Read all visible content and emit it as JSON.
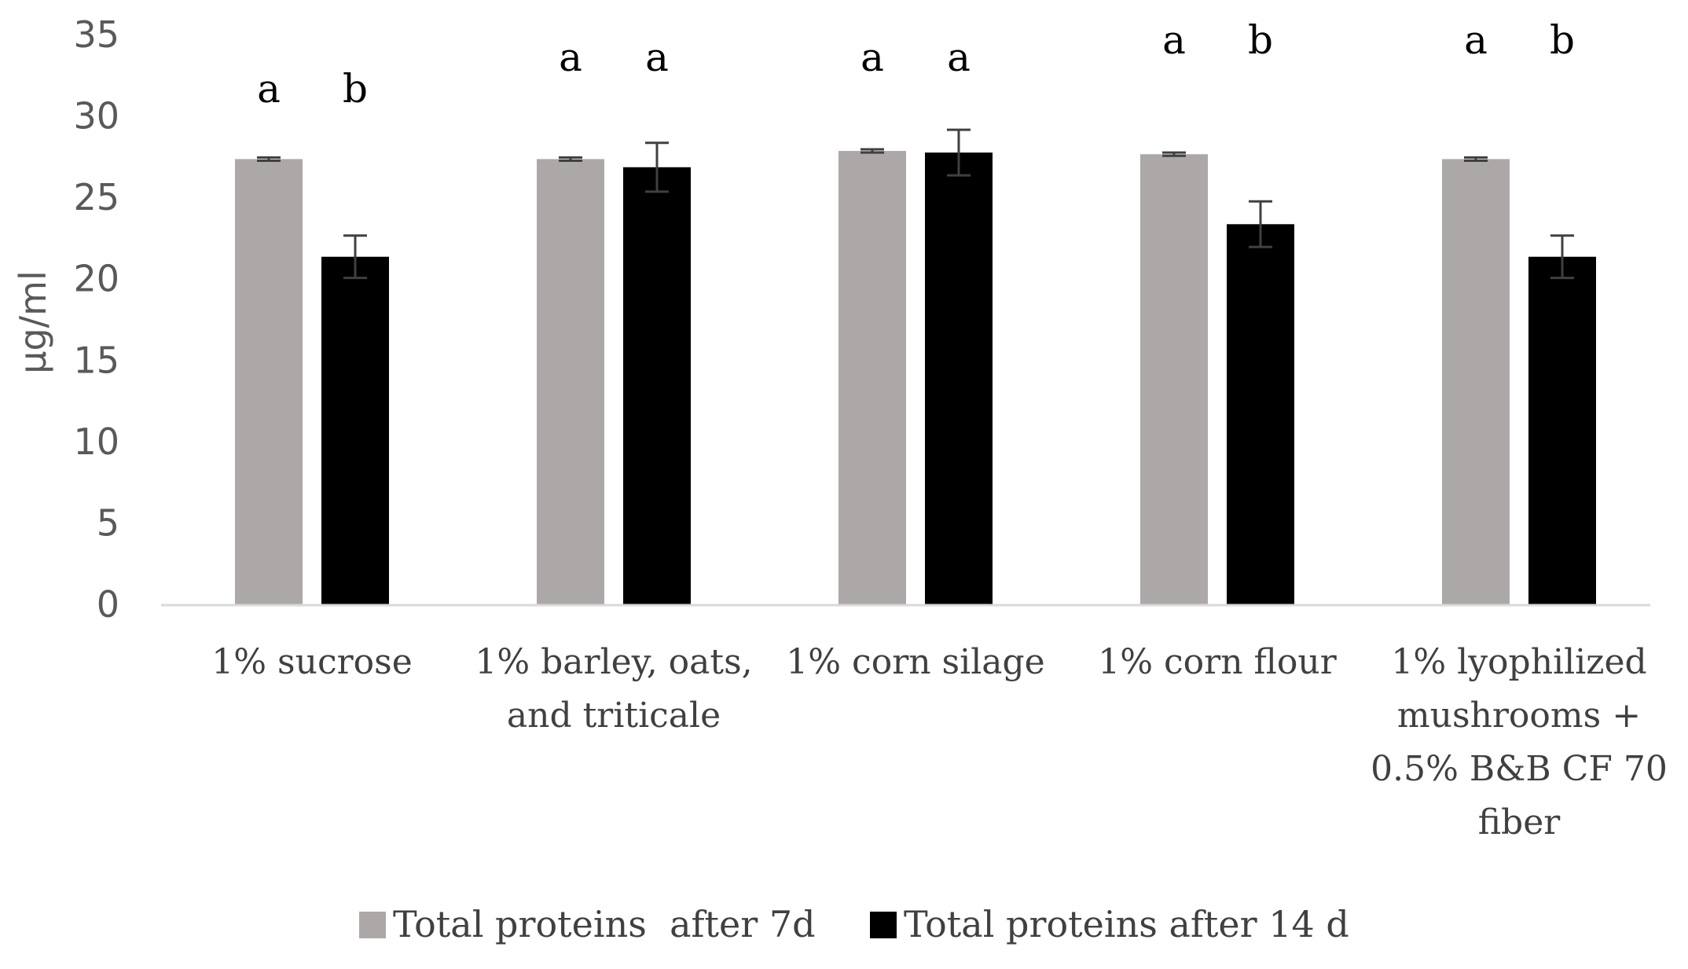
{
  "chart_data": {
    "type": "bar",
    "title": "",
    "xlabel": "",
    "ylabel": "µg/ml",
    "ylim": [
      0,
      35
    ],
    "yticks": [
      "0",
      "5",
      "10",
      "15",
      "20",
      "25",
      "30",
      "35"
    ],
    "categories": [
      [
        "1% sucrose"
      ],
      [
        "1% barley, oats,",
        "and triticale"
      ],
      [
        "1% corn silage"
      ],
      [
        "1% corn flour"
      ],
      [
        "1% lyophilized",
        "mushrooms +",
        "0.5% B&B CF 70",
        "fiber"
      ]
    ],
    "series": [
      {
        "name": "Total proteins  after 7d",
        "color": "#ada8a8",
        "values": [
          27.4,
          27.4,
          27.9,
          27.7,
          27.4
        ],
        "errors": [
          0.1,
          0.1,
          0.1,
          0.1,
          0.1
        ],
        "letters": [
          "a",
          "a",
          "a",
          "a",
          "a"
        ]
      },
      {
        "name": "Total proteins after 14 d",
        "color": "#000000",
        "values": [
          21.4,
          26.9,
          27.8,
          23.4,
          21.4
        ],
        "errors": [
          1.3,
          1.5,
          1.4,
          1.4,
          1.3
        ],
        "letters": [
          "b",
          "a",
          "a",
          "b",
          "b"
        ]
      }
    ],
    "legend_position": "bottom"
  }
}
